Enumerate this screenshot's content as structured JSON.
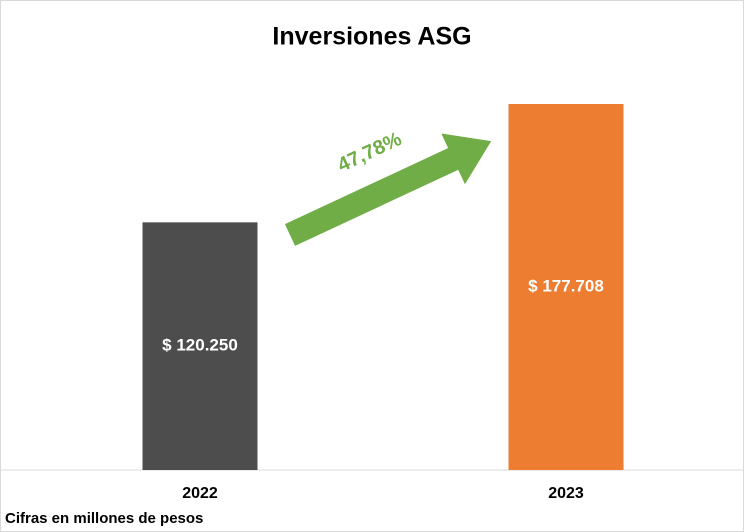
{
  "chart_data": {
    "type": "bar",
    "title": "Inversiones ASG",
    "categories": [
      "2022",
      "2023"
    ],
    "values": [
      120250,
      177708
    ],
    "value_labels": [
      "$ 120.250",
      "$ 177.708"
    ],
    "colors": [
      "#4d4d4d",
      "#ed7d31"
    ],
    "annotation": "47,78%",
    "footnote": "Cifras en millones de pesos"
  }
}
